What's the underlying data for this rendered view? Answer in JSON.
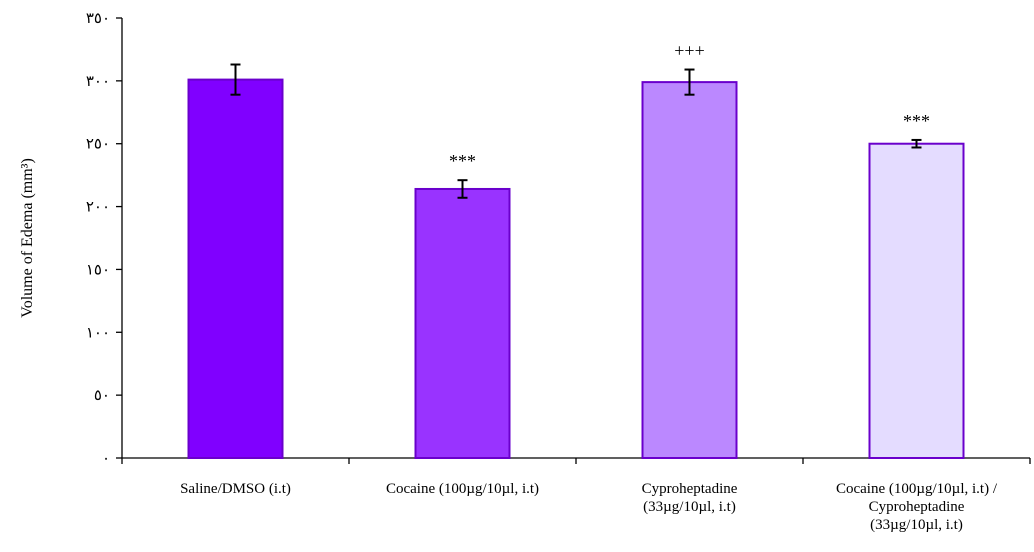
{
  "chart_data": {
    "type": "bar",
    "title": "",
    "xlabel": "",
    "ylabel": "Volume of Edema (mm³)",
    "ylim": [
      0,
      350
    ],
    "yticks": [
      0,
      50,
      100,
      150,
      200,
      250,
      300,
      350
    ],
    "ytick_labels": [
      "٠",
      "٥٠",
      "١٠٠",
      "١٥٠",
      "٢٠٠",
      "٢٥٠",
      "٣٠٠",
      "٣٥٠"
    ],
    "categories": [
      [
        "Saline/DMSO (i.t)"
      ],
      [
        "Cocaine (100µg/10µl, i.t)"
      ],
      [
        "Cyproheptadine",
        "(33µg/10µl, i.t)"
      ],
      [
        "Cocaine (100µg/10µl, i.t) /",
        "Cyproheptadine",
        "(33µg/10µl, i.t)"
      ]
    ],
    "values": [
      301,
      214,
      299,
      250
    ],
    "errors": [
      12,
      7,
      10,
      3
    ],
    "significance": [
      "",
      "***",
      "+++",
      "***"
    ],
    "colors": [
      "#8000ff",
      "#9933ff",
      "#bb88ff",
      "#e4dcff"
    ],
    "grid": false,
    "legend": "none"
  }
}
